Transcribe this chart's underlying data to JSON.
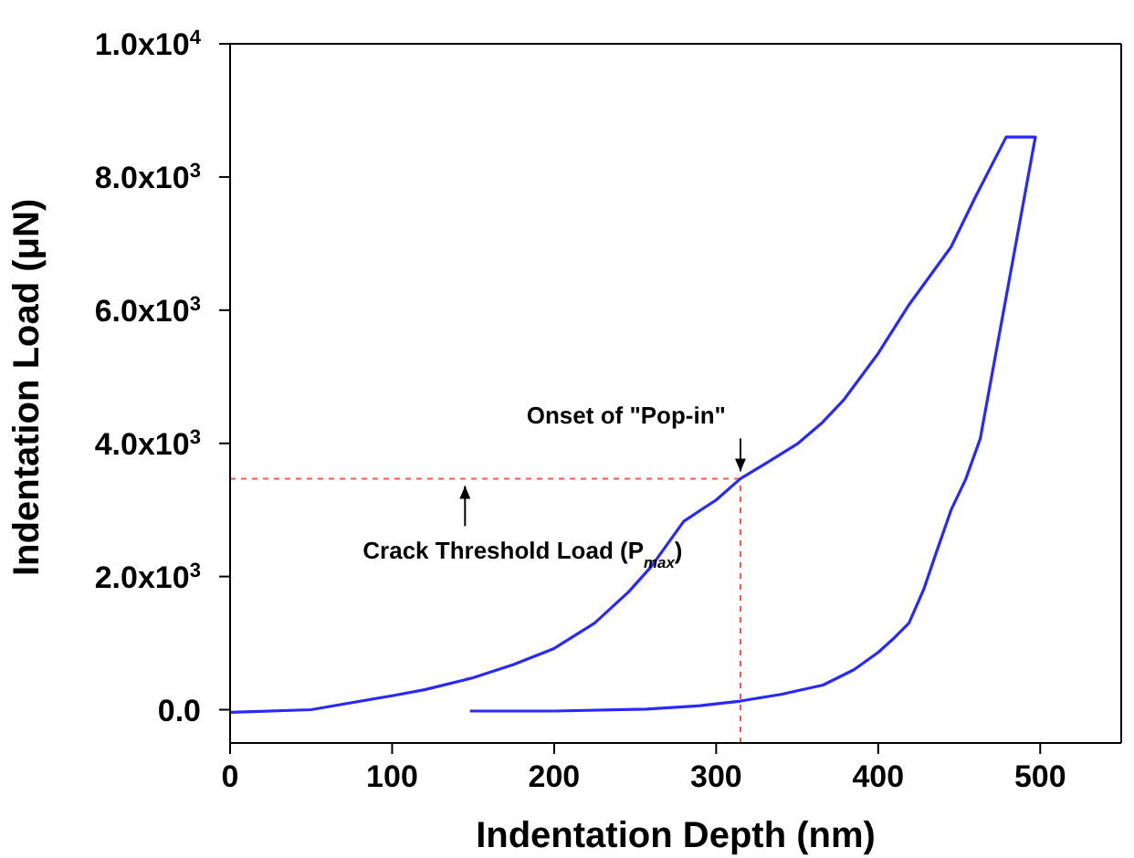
{
  "chart_data": {
    "type": "line",
    "xlabel": "Indentation Depth (nm)",
    "ylabel": "Indentation Load (μN)",
    "xlim": [
      0,
      550
    ],
    "xticks": [
      0,
      100,
      200,
      300,
      400,
      500
    ],
    "ylim": [
      -500,
      10000
    ],
    "yticks": [
      {
        "value": 0,
        "label": "0.0"
      },
      {
        "value": 2000,
        "label": "2.0x10$^{3}$"
      },
      {
        "value": 4000,
        "label": "4.0x10$^{3}$"
      },
      {
        "value": 6000,
        "label": "6.0x10$^{3}$"
      },
      {
        "value": 8000,
        "label": "8.0x10$^{3}$"
      },
      {
        "value": 10000,
        "label": "1.0x10$^{4}$"
      }
    ],
    "marker": "none",
    "line_style": "solid",
    "series": [
      {
        "color": "#2828ff",
        "x": [
          0,
          50,
          100,
          120,
          150,
          175,
          200,
          225,
          246,
          260,
          280,
          300,
          315,
          330,
          350,
          365,
          379,
          400,
          419,
          445,
          460,
          479,
          497,
          463,
          454,
          445,
          436,
          428,
          419,
          410,
          400,
          385,
          366,
          340,
          315,
          290,
          257,
          200,
          148
        ],
        "values": [
          -40,
          0,
          210,
          300,
          480,
          680,
          920,
          1300,
          1770,
          2150,
          2830,
          3150,
          3470,
          3690,
          3990,
          4300,
          4660,
          5350,
          6080,
          6950,
          7700,
          8600,
          8600,
          4070,
          3460,
          3000,
          2370,
          1800,
          1300,
          1080,
          860,
          600,
          370,
          230,
          130,
          60,
          10,
          -20,
          -20
        ]
      }
    ],
    "ref_lines": [
      {
        "axis": "y",
        "value": 3470,
        "color": "#ff5555",
        "line_style": "dashed"
      },
      {
        "axis": "x",
        "value": 315,
        "color": "#ff5555",
        "line_style": "dashed"
      }
    ],
    "annotations": [
      {
        "text": "Onset of \"Pop-in\"",
        "x": 315,
        "y": 3470
      },
      {
        "text": "Crack Threshold Load (P$_{max}$)",
        "x": 145,
        "y": 3470
      }
    ]
  }
}
